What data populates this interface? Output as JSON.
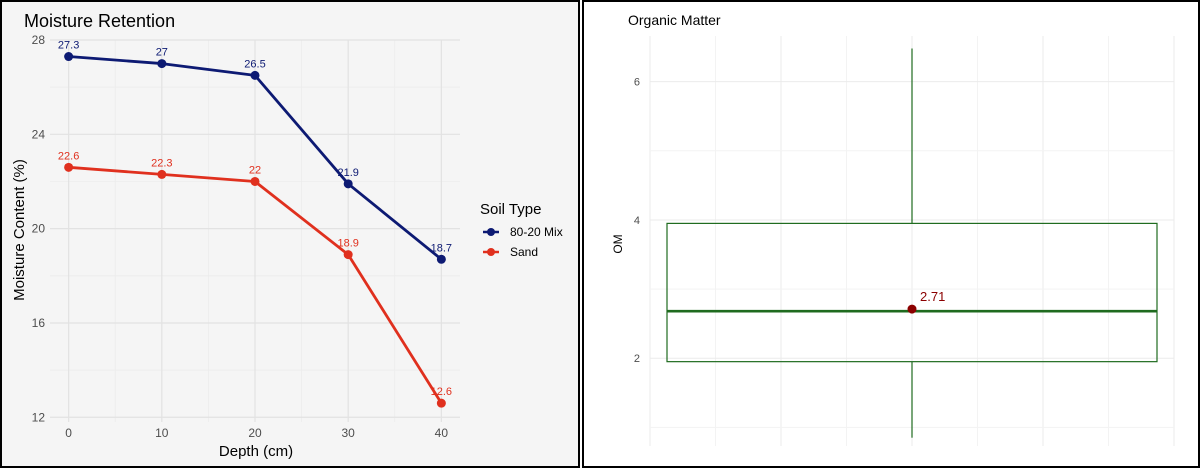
{
  "chart_data": [
    {
      "type": "line",
      "title": "Moisture Retention",
      "xlabel": "Depth (cm)",
      "ylabel": "Moisture Content (%)",
      "x": [
        0,
        10,
        20,
        30,
        40
      ],
      "xlim": [
        -2,
        42
      ],
      "ylim": [
        11.8,
        28.0
      ],
      "x_ticks": [
        0,
        10,
        20,
        30,
        40
      ],
      "y_ticks": [
        12,
        16,
        20,
        24,
        28
      ],
      "grid": true,
      "legend": {
        "title": "Soil Type",
        "placement": "right"
      },
      "series": [
        {
          "name": "80-20 Mix",
          "color": "#0d1a73",
          "values": [
            27.3,
            27,
            26.5,
            21.9,
            18.7
          ],
          "labels": [
            "27.3",
            "27",
            "26.5",
            "21.9",
            "18.7"
          ]
        },
        {
          "name": "Sand",
          "color": "#e0301e",
          "values": [
            22.6,
            22.3,
            22,
            18.9,
            12.6
          ],
          "labels": [
            "22.6",
            "22.3",
            "22",
            "18.9",
            "12.6"
          ]
        }
      ]
    },
    {
      "type": "box",
      "title": "Organic Matter",
      "xlabel": "",
      "ylabel": "OM",
      "ylim": [
        0.73,
        6.95
      ],
      "y_ticks": [
        2,
        4,
        6
      ],
      "grid": true,
      "box": {
        "min": 0.85,
        "q1": 1.95,
        "median": 2.68,
        "q3": 3.95,
        "max": 6.48,
        "color": "#1f6b1f"
      },
      "mean": {
        "value": 2.71,
        "label": "2.71",
        "color": "#8b0000"
      }
    }
  ]
}
